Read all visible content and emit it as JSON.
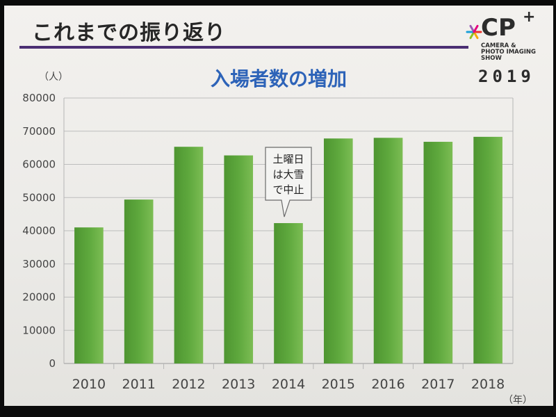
{
  "slide": {
    "title": "これまでの振り返り",
    "logo": {
      "name": "CP",
      "plus": "+",
      "subtitle_lines": [
        "CAMERA &",
        "PHOTO IMAGING",
        "SHOW"
      ],
      "year": "2019",
      "star_colors": [
        "#e8342c",
        "#f6a800",
        "#8dc21f",
        "#1a9fd8",
        "#9b59b6",
        "#e4007f"
      ]
    }
  },
  "chart_data": {
    "type": "bar",
    "title": "入場者数の増加",
    "ylabel": "（人）",
    "xlabel": "（年）",
    "categories": [
      "2010",
      "2011",
      "2012",
      "2013",
      "2014",
      "2015",
      "2016",
      "2017",
      "2018"
    ],
    "values": [
      41000,
      49400,
      65300,
      62700,
      42300,
      67800,
      68000,
      66800,
      68300
    ],
    "ylim": [
      0,
      80000
    ],
    "yticks": [
      0,
      10000,
      20000,
      30000,
      40000,
      50000,
      60000,
      70000,
      80000
    ],
    "ytick_labels": [
      "0",
      "10000",
      "20000",
      "30000",
      "40000",
      "50000",
      "60000",
      "70000",
      "80000"
    ],
    "grid": true,
    "bar_color": "#5ea83d",
    "annotation": {
      "category": "2014",
      "lines": [
        "土曜日",
        "は大雪",
        "で中止"
      ]
    }
  }
}
